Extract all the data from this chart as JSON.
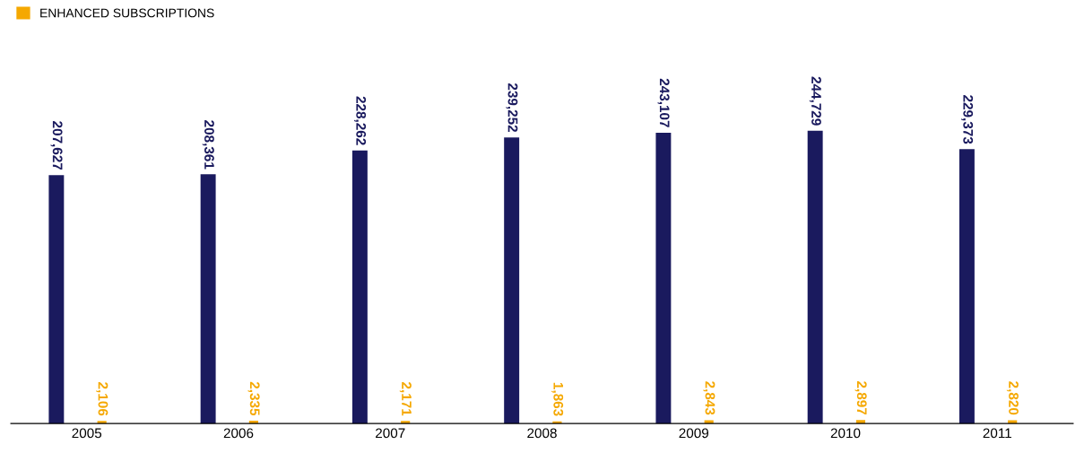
{
  "chart_data": {
    "type": "bar",
    "categories": [
      "2005",
      "2006",
      "2007",
      "2008",
      "2009",
      "2010",
      "2011"
    ],
    "series": [
      {
        "color": "#1a1a5e",
        "values": [
          207627,
          208361,
          228262,
          239252,
          243107,
          244729,
          229373
        ],
        "value_labels": [
          "207,627",
          "208,361",
          "228,262",
          "239,252",
          "243,107",
          "244,729",
          "229,373"
        ]
      },
      {
        "name": "ENHANCED SUBSCRIPTIONS",
        "color": "#f5a800",
        "values": [
          2106,
          2335,
          2171,
          1863,
          2843,
          2897,
          2820
        ],
        "value_labels": [
          "2,106",
          "2,335",
          "2,171",
          "1,863",
          "2,843",
          "2,897",
          "2,820"
        ]
      }
    ],
    "legend": "top left",
    "grid": false,
    "tick_labels": "x"
  }
}
